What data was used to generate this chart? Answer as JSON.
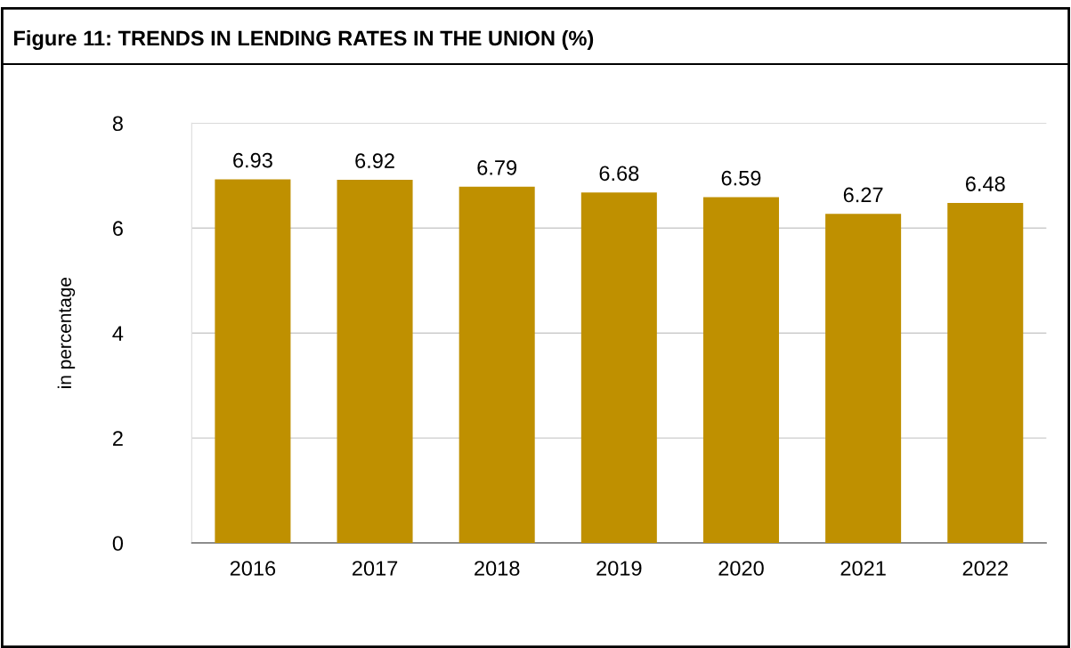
{
  "chart_data": {
    "type": "bar",
    "title": "Figure 11: TRENDS IN LENDING RATES IN THE UNION (%)",
    "ylabel": "in percentage",
    "categories": [
      "2016",
      "2017",
      "2018",
      "2019",
      "2020",
      "2021",
      "2022"
    ],
    "values": [
      6.93,
      6.92,
      6.79,
      6.68,
      6.59,
      6.27,
      6.48
    ],
    "color": "#bf9000",
    "ylim": [
      0,
      8
    ],
    "yticks": [
      0,
      2,
      4,
      6,
      8
    ],
    "grid": "y",
    "data_labels": true
  }
}
